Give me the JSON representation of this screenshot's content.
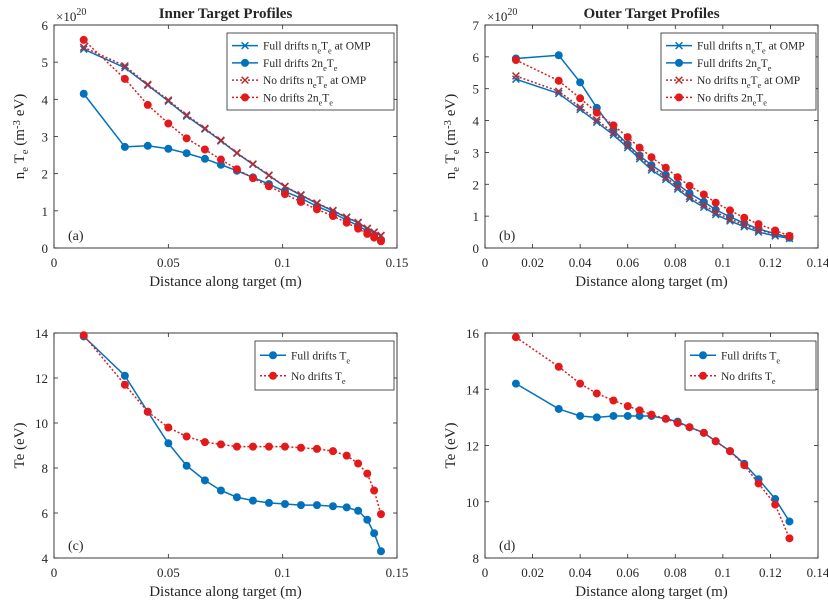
{
  "chart_data": [
    {
      "panel": "(a)",
      "type": "line",
      "title": "Inner Target Profiles",
      "xlabel": "Distance along target (m)",
      "ylabel": "n_e T_e (m^-3 eV)",
      "y_multiplier": "×10^20",
      "xlim": [
        0,
        0.15
      ],
      "ylim": [
        0,
        6
      ],
      "x_ticks": [
        "0",
        "0.05",
        "0.1",
        "0.15"
      ],
      "y_ticks": [
        "0",
        "1",
        "2",
        "3",
        "4",
        "5",
        "6"
      ],
      "grid": false,
      "legend": "top-right",
      "series": [
        {
          "name": "Full drifts n_eT_e at OMP",
          "color": "#0072BD",
          "line": "solid",
          "marker": "x",
          "x": [
            0.013,
            0.031,
            0.041,
            0.05,
            0.058,
            0.066,
            0.073,
            0.08,
            0.087,
            0.094,
            0.101,
            0.108,
            0.115,
            0.122,
            0.128,
            0.133,
            0.137,
            0.14,
            0.143
          ],
          "y": [
            5.35,
            4.85,
            4.38,
            3.95,
            3.55,
            3.2,
            2.88,
            2.55,
            2.25,
            1.95,
            1.65,
            1.42,
            1.2,
            1.0,
            0.82,
            0.68,
            0.52,
            0.42,
            0.33
          ]
        },
        {
          "name": "Full drifts 2n_eT_e",
          "color": "#0072BD",
          "line": "solid",
          "marker": "o",
          "x": [
            0.013,
            0.031,
            0.041,
            0.05,
            0.058,
            0.066,
            0.073,
            0.08,
            0.087,
            0.094,
            0.101,
            0.108,
            0.115,
            0.122,
            0.128,
            0.133,
            0.137,
            0.14,
            0.143
          ],
          "y": [
            4.15,
            2.72,
            2.75,
            2.67,
            2.55,
            2.4,
            2.24,
            2.08,
            1.9,
            1.72,
            1.52,
            1.34,
            1.12,
            0.94,
            0.75,
            0.6,
            0.45,
            0.34,
            0.22
          ]
        },
        {
          "name": "No drifts n_eT_e at OMP",
          "color": "#C0272D",
          "line": "dotted",
          "marker": "x",
          "x": [
            0.013,
            0.031,
            0.041,
            0.05,
            0.058,
            0.066,
            0.073,
            0.08,
            0.087,
            0.094,
            0.101,
            0.108,
            0.115,
            0.122,
            0.128,
            0.133,
            0.137,
            0.14,
            0.143
          ],
          "y": [
            5.4,
            4.9,
            4.4,
            3.98,
            3.58,
            3.22,
            2.9,
            2.56,
            2.26,
            1.96,
            1.66,
            1.43,
            1.21,
            1.01,
            0.83,
            0.69,
            0.53,
            0.43,
            0.34
          ]
        },
        {
          "name": "No drifts 2n_eT_e",
          "color": "#E31A1C",
          "line": "dotted",
          "marker": "o",
          "x": [
            0.013,
            0.031,
            0.041,
            0.05,
            0.058,
            0.066,
            0.073,
            0.08,
            0.087,
            0.094,
            0.101,
            0.108,
            0.115,
            0.122,
            0.128,
            0.133,
            0.137,
            0.14,
            0.143
          ],
          "y": [
            5.6,
            4.55,
            3.85,
            3.35,
            2.95,
            2.65,
            2.38,
            2.12,
            1.88,
            1.66,
            1.45,
            1.24,
            1.04,
            0.86,
            0.68,
            0.52,
            0.38,
            0.28,
            0.18
          ]
        }
      ]
    },
    {
      "panel": "(b)",
      "type": "line",
      "title": "Outer Target Profiles",
      "xlabel": "Distance along target (m)",
      "ylabel": "n_e T_e (m^-3 eV)",
      "y_multiplier": "×10^20",
      "xlim": [
        0,
        0.14
      ],
      "ylim": [
        0,
        7
      ],
      "x_ticks": [
        "0",
        "0.02",
        "0.04",
        "0.06",
        "0.08",
        "0.1",
        "0.12",
        "0.14"
      ],
      "y_ticks": [
        "0",
        "1",
        "2",
        "3",
        "4",
        "5",
        "6",
        "7"
      ],
      "grid": false,
      "legend": "top-right",
      "series": [
        {
          "name": "Full drifts n_eT_e at OMP",
          "color": "#0072BD",
          "line": "solid",
          "marker": "x",
          "x": [
            0.013,
            0.031,
            0.04,
            0.047,
            0.054,
            0.06,
            0.065,
            0.07,
            0.076,
            0.081,
            0.086,
            0.092,
            0.097,
            0.103,
            0.109,
            0.115,
            0.122,
            0.128
          ],
          "y": [
            5.3,
            4.85,
            4.35,
            3.95,
            3.55,
            3.15,
            2.8,
            2.45,
            2.15,
            1.85,
            1.55,
            1.28,
            1.05,
            0.85,
            0.67,
            0.5,
            0.38,
            0.3
          ]
        },
        {
          "name": "Full drifts 2n_eT_e",
          "color": "#0072BD",
          "line": "solid",
          "marker": "o",
          "x": [
            0.013,
            0.031,
            0.04,
            0.047,
            0.054,
            0.06,
            0.065,
            0.07,
            0.076,
            0.081,
            0.086,
            0.092,
            0.097,
            0.103,
            0.109,
            0.115,
            0.122,
            0.128
          ],
          "y": [
            5.95,
            6.05,
            5.2,
            4.4,
            3.7,
            3.25,
            2.9,
            2.6,
            2.3,
            2.0,
            1.72,
            1.45,
            1.2,
            0.98,
            0.78,
            0.6,
            0.45,
            0.32
          ]
        },
        {
          "name": "No drifts n_eT_e at OMP",
          "color": "#C0272D",
          "line": "dotted",
          "marker": "x",
          "x": [
            0.013,
            0.031,
            0.04,
            0.047,
            0.054,
            0.06,
            0.065,
            0.07,
            0.076,
            0.081,
            0.086,
            0.092,
            0.097,
            0.103,
            0.109,
            0.115,
            0.122,
            0.128
          ],
          "y": [
            5.4,
            4.92,
            4.42,
            4.02,
            3.62,
            3.22,
            2.87,
            2.52,
            2.22,
            1.92,
            1.62,
            1.35,
            1.12,
            0.91,
            0.73,
            0.56,
            0.44,
            0.36
          ]
        },
        {
          "name": "No drifts 2n_eT_e",
          "color": "#E31A1C",
          "line": "dotted",
          "marker": "o",
          "x": [
            0.013,
            0.031,
            0.04,
            0.047,
            0.054,
            0.06,
            0.065,
            0.07,
            0.076,
            0.081,
            0.086,
            0.092,
            0.097,
            0.103,
            0.109,
            0.115,
            0.122,
            0.128
          ],
          "y": [
            5.9,
            5.25,
            4.7,
            4.25,
            3.85,
            3.48,
            3.15,
            2.85,
            2.52,
            2.22,
            1.95,
            1.68,
            1.42,
            1.18,
            0.95,
            0.75,
            0.55,
            0.38
          ]
        }
      ]
    },
    {
      "panel": "(c)",
      "type": "line",
      "title": "",
      "xlabel": "Distance along target (m)",
      "ylabel": "Te (eV)",
      "xlim": [
        0,
        0.15
      ],
      "ylim": [
        4,
        14
      ],
      "x_ticks": [
        "0",
        "0.05",
        "0.1",
        "0.15"
      ],
      "y_ticks": [
        "4",
        "6",
        "8",
        "10",
        "12",
        "14"
      ],
      "grid": false,
      "legend": "top-right",
      "series": [
        {
          "name": "Full drifts T_e",
          "color": "#0072BD",
          "line": "solid",
          "marker": "o",
          "x": [
            0.013,
            0.031,
            0.041,
            0.05,
            0.058,
            0.066,
            0.073,
            0.08,
            0.087,
            0.094,
            0.101,
            0.108,
            0.115,
            0.122,
            0.128,
            0.133,
            0.137,
            0.14,
            0.143
          ],
          "y": [
            13.85,
            12.1,
            10.5,
            9.1,
            8.1,
            7.45,
            7.0,
            6.7,
            6.55,
            6.45,
            6.4,
            6.35,
            6.35,
            6.3,
            6.25,
            6.1,
            5.7,
            5.1,
            4.3
          ]
        },
        {
          "name": "No drifts T_e",
          "color": "#E31A1C",
          "line": "dotted",
          "marker": "o",
          "x": [
            0.013,
            0.031,
            0.041,
            0.05,
            0.058,
            0.066,
            0.073,
            0.08,
            0.087,
            0.094,
            0.101,
            0.108,
            0.115,
            0.122,
            0.128,
            0.133,
            0.137,
            0.14,
            0.143
          ],
          "y": [
            13.9,
            11.7,
            10.5,
            9.8,
            9.4,
            9.15,
            9.05,
            8.95,
            8.95,
            8.95,
            8.95,
            8.9,
            8.85,
            8.75,
            8.55,
            8.2,
            7.75,
            7.0,
            5.95
          ]
        }
      ]
    },
    {
      "panel": "(d)",
      "type": "line",
      "title": "",
      "xlabel": "Distance along target (m)",
      "ylabel": "Te (eV)",
      "xlim": [
        0,
        0.14
      ],
      "ylim": [
        8,
        16
      ],
      "x_ticks": [
        "0",
        "0.02",
        "0.04",
        "0.06",
        "0.08",
        "0.1",
        "0.12",
        "0.14"
      ],
      "y_ticks": [
        "8",
        "10",
        "12",
        "14",
        "16"
      ],
      "grid": false,
      "legend": "top-right",
      "series": [
        {
          "name": "Full drifts T_e",
          "color": "#0072BD",
          "line": "solid",
          "marker": "o",
          "x": [
            0.013,
            0.031,
            0.04,
            0.047,
            0.054,
            0.06,
            0.065,
            0.07,
            0.076,
            0.081,
            0.086,
            0.092,
            0.097,
            0.103,
            0.109,
            0.115,
            0.122,
            0.128
          ],
          "y": [
            14.2,
            13.3,
            13.05,
            13.0,
            13.05,
            13.05,
            13.05,
            13.05,
            12.95,
            12.85,
            12.65,
            12.45,
            12.15,
            11.8,
            11.35,
            10.8,
            10.1,
            9.3
          ]
        },
        {
          "name": "No drifts T_e",
          "color": "#E31A1C",
          "line": "dotted",
          "marker": "o",
          "x": [
            0.013,
            0.031,
            0.04,
            0.047,
            0.054,
            0.06,
            0.065,
            0.07,
            0.076,
            0.081,
            0.086,
            0.092,
            0.097,
            0.103,
            0.109,
            0.115,
            0.122,
            0.128
          ],
          "y": [
            15.85,
            14.8,
            14.2,
            13.85,
            13.6,
            13.4,
            13.25,
            13.1,
            12.95,
            12.8,
            12.65,
            12.45,
            12.15,
            11.8,
            11.3,
            10.65,
            9.9,
            8.7
          ]
        }
      ]
    }
  ]
}
